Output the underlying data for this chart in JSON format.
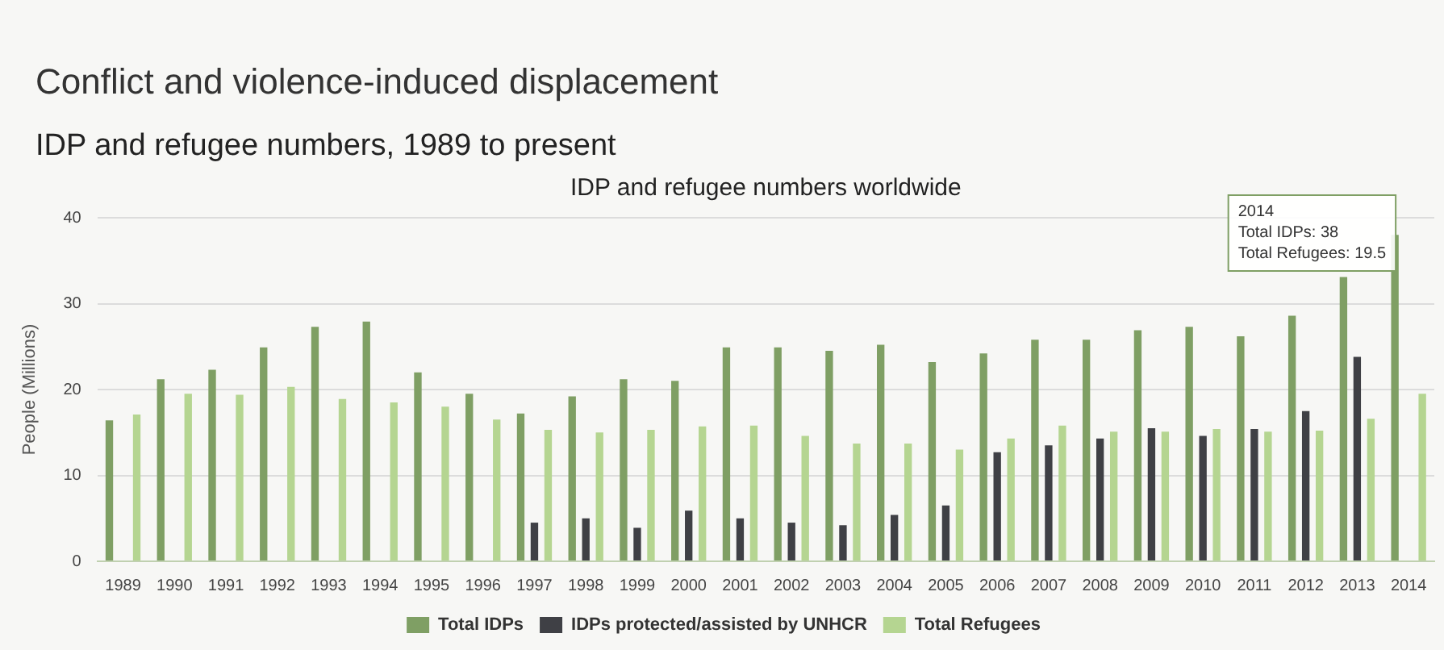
{
  "chart_data": {
    "type": "bar",
    "title": "Conflict and violence-induced displacement",
    "subtitle": "IDP and refugee numbers, 1989 to present",
    "ylabel": "People (Millions)",
    "annotations": [
      "IDP and refugee numbers worldwide",
      "2014\nTotal IDPs: 38\nTotal Refugees: 19.5"
    ],
    "categories": [
      "1989",
      "1990",
      "1991",
      "1992",
      "1993",
      "1994",
      "1995",
      "1996",
      "1997",
      "1998",
      "1999",
      "2000",
      "2001",
      "2002",
      "2003",
      "2004",
      "2005",
      "2006",
      "2007",
      "2008",
      "2009",
      "2010",
      "2011",
      "2012",
      "2013",
      "2014"
    ],
    "series": [
      {
        "name": "Total IDPs",
        "color": "#7f9f64",
        "values": [
          16.4,
          21.2,
          22.3,
          24.9,
          27.3,
          27.9,
          22.0,
          19.5,
          17.2,
          19.2,
          21.2,
          21.0,
          24.9,
          24.9,
          24.5,
          25.2,
          23.2,
          24.2,
          25.8,
          25.8,
          26.9,
          27.3,
          26.2,
          28.6,
          33.1,
          38
        ]
      },
      {
        "name": "IDPs protected/assisted by UNHCR",
        "color": "#3f4045",
        "values": [
          null,
          null,
          null,
          null,
          null,
          null,
          null,
          null,
          4.5,
          5.0,
          3.9,
          5.9,
          5.0,
          4.5,
          4.2,
          5.4,
          6.5,
          12.7,
          13.5,
          14.3,
          15.5,
          14.6,
          15.4,
          17.5,
          23.8,
          null
        ]
      },
      {
        "name": "Total Refugees",
        "color": "#b5d591",
        "values": [
          17.1,
          19.5,
          19.4,
          20.3,
          18.9,
          18.5,
          18.0,
          16.5,
          15.3,
          15.0,
          15.3,
          15.7,
          15.8,
          14.6,
          13.7,
          13.7,
          13.0,
          14.3,
          15.8,
          15.1,
          15.1,
          15.4,
          15.1,
          15.2,
          16.6,
          19.5
        ]
      }
    ],
    "ylim": [
      0,
      40
    ],
    "yticks": [
      0,
      10,
      20,
      30,
      40
    ],
    "grid": "y",
    "legend": "bottom"
  }
}
